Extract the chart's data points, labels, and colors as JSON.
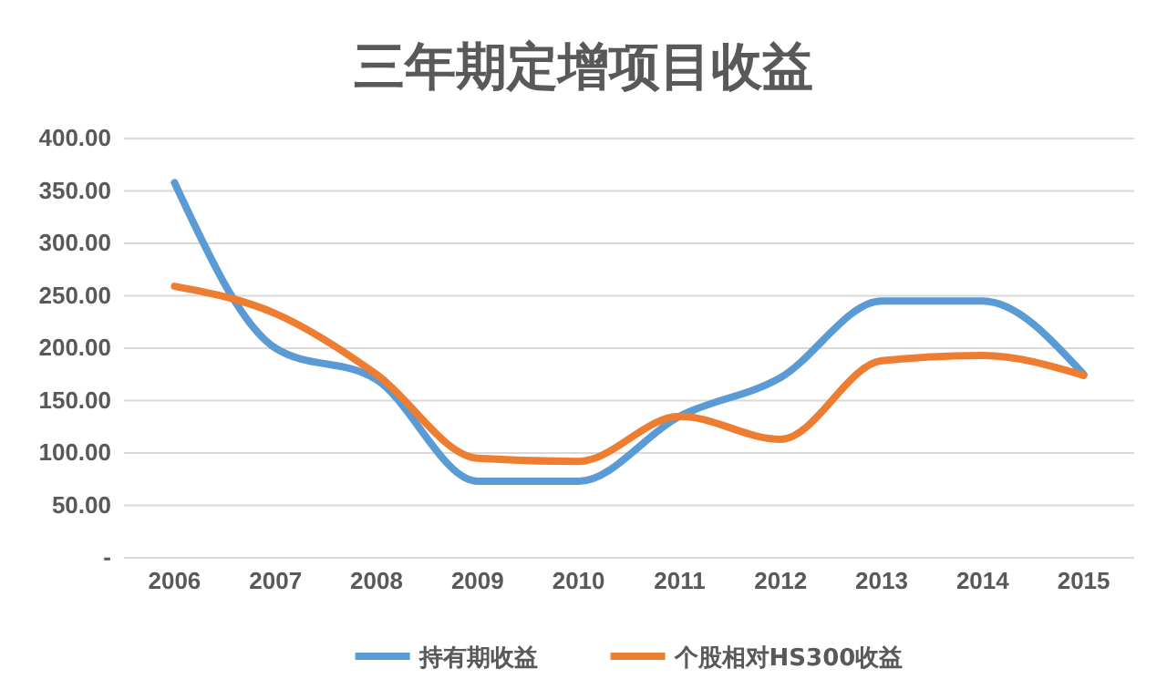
{
  "chart_data": {
    "type": "line",
    "title": "三年期定增项目收益",
    "categories": [
      "2006",
      "2007",
      "2008",
      "2009",
      "2010",
      "2011",
      "2012",
      "2013",
      "2014",
      "2015"
    ],
    "series": [
      {
        "name": "持有期收益",
        "color": "#5b9bd5",
        "values": [
          358,
          200,
          170,
          73,
          73,
          135,
          172,
          245,
          245,
          175
        ]
      },
      {
        "name": "个股相对HS300收益",
        "color": "#ed7d31",
        "values": [
          259,
          233,
          175,
          95,
          92,
          135,
          113,
          188,
          193,
          174
        ]
      }
    ],
    "ylim": [
      0,
      400
    ],
    "yticks": [
      {
        "value": 0,
        "label": "-"
      },
      {
        "value": 50,
        "label": "50.00"
      },
      {
        "value": 100,
        "label": "100.00"
      },
      {
        "value": 150,
        "label": "150.00"
      },
      {
        "value": 200,
        "label": "200.00"
      },
      {
        "value": 250,
        "label": "250.00"
      },
      {
        "value": 300,
        "label": "300.00"
      },
      {
        "value": 350,
        "label": "350.00"
      },
      {
        "value": 400,
        "label": "400.00"
      }
    ],
    "grid": "y",
    "legend": "bottom",
    "marker": "none",
    "line_style": "solid"
  }
}
